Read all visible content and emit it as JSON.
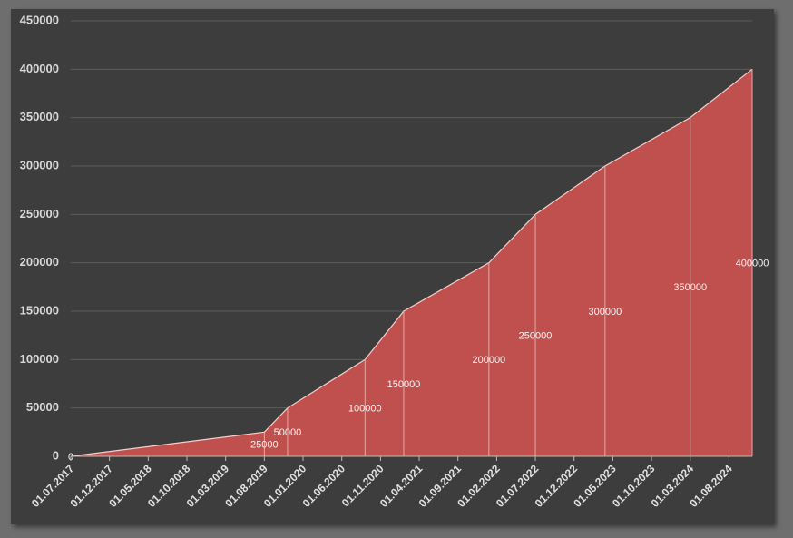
{
  "chart_data": {
    "type": "area",
    "x": [
      "01.07.2017",
      "01.08.2019",
      "01.11.2019",
      "01.09.2020",
      "01.02.2021",
      "01.01.2022",
      "01.07.2022",
      "01.04.2023",
      "01.03.2024",
      "01.11.2024"
    ],
    "values": [
      0,
      25000,
      50000,
      100000,
      150000,
      200000,
      250000,
      300000,
      350000,
      400000
    ],
    "color": "#c0504d",
    "xlim": [
      "01.07.2017",
      "01.11.2024"
    ],
    "xticks": [
      "01.07.2017",
      "01.12.2017",
      "01.05.2018",
      "01.10.2018",
      "01.03.2019",
      "01.08.2019",
      "01.01.2020",
      "01.06.2020",
      "01.11.2020",
      "01.04.2021",
      "01.09.2021",
      "01.02.2022",
      "01.07.2022",
      "01.12.2022",
      "01.05.2023",
      "01.10.2023",
      "01.03.2024",
      "01.08.2024"
    ],
    "ylim": [
      0,
      450000
    ],
    "yticks": [
      0,
      50000,
      100000,
      150000,
      200000,
      250000,
      300000,
      350000,
      400000,
      450000
    ],
    "grid": true
  }
}
